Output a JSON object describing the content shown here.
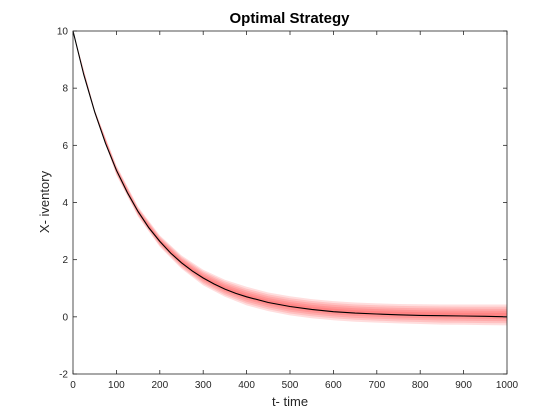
{
  "chart_data": {
    "type": "line",
    "title": "Optimal Strategy",
    "xlabel": "t- time",
    "ylabel": "X- iventory",
    "xlim": [
      0,
      1000
    ],
    "ylim": [
      -2,
      10
    ],
    "xticks": [
      "0",
      "100",
      "200",
      "300",
      "400",
      "500",
      "600",
      "700",
      "800",
      "900",
      "1000"
    ],
    "yticks": [
      "-2",
      "0",
      "2",
      "4",
      "6",
      "8",
      "10"
    ],
    "grid": false,
    "series": [
      {
        "color": "#000000",
        "x": [
          0,
          25,
          50,
          75,
          100,
          125,
          150,
          175,
          200,
          225,
          250,
          275,
          300,
          325,
          350,
          375,
          400,
          450,
          500,
          550,
          600,
          650,
          700,
          750,
          800,
          850,
          900,
          950,
          1000
        ],
        "y": [
          10.0,
          8.47,
          7.17,
          6.07,
          5.13,
          4.35,
          3.68,
          3.11,
          2.64,
          2.23,
          1.89,
          1.6,
          1.36,
          1.15,
          0.97,
          0.82,
          0.7,
          0.5,
          0.36,
          0.26,
          0.18,
          0.13,
          0.1,
          0.07,
          0.05,
          0.04,
          0.03,
          0.02,
          0.0
        ]
      }
    ],
    "band": {
      "color": "#ff3333",
      "x": [
        0,
        50,
        100,
        150,
        200,
        250,
        300,
        350,
        400,
        450,
        500,
        550,
        600,
        650,
        700,
        750,
        800,
        850,
        900,
        950,
        1000
      ],
      "upper": [
        10.0,
        7.25,
        5.3,
        3.85,
        2.85,
        2.15,
        1.65,
        1.3,
        1.05,
        0.85,
        0.72,
        0.62,
        0.55,
        0.5,
        0.47,
        0.45,
        0.44,
        0.43,
        0.43,
        0.43,
        0.43
      ],
      "lower": [
        10.0,
        7.1,
        4.95,
        3.5,
        2.45,
        1.68,
        1.1,
        0.7,
        0.4,
        0.2,
        0.05,
        -0.05,
        -0.12,
        -0.17,
        -0.2,
        -0.23,
        -0.25,
        -0.27,
        -0.28,
        -0.29,
        -0.3
      ]
    }
  }
}
